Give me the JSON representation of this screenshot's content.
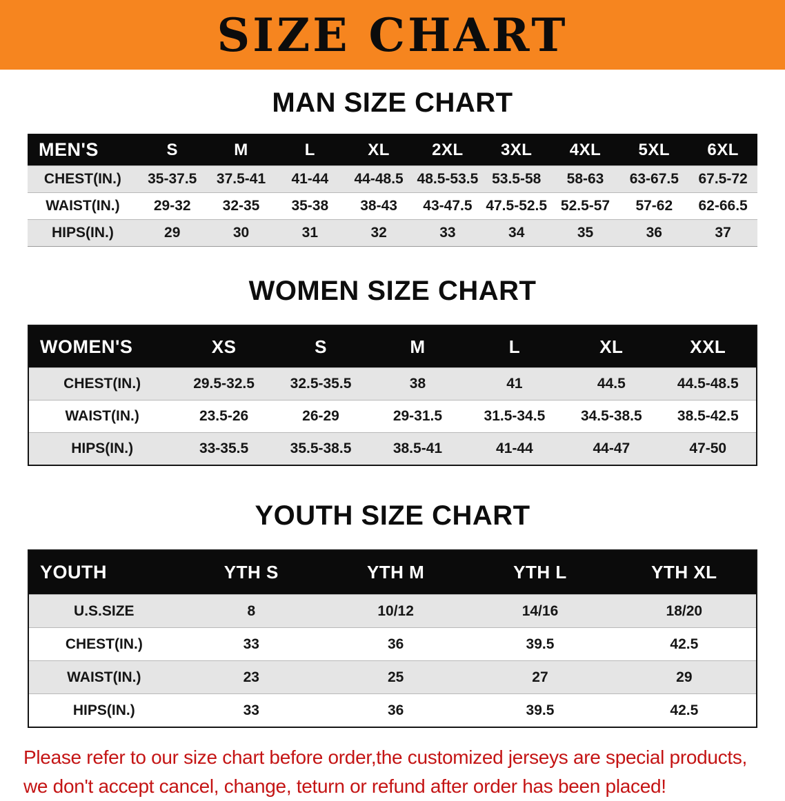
{
  "banner": {
    "title": "SIZE CHART",
    "background_color": "#F6851F",
    "text_color": "#0C0C0C"
  },
  "sections": {
    "men": {
      "title": "MAN SIZE CHART",
      "table": {
        "header": [
          "MEN'S",
          "S",
          "M",
          "L",
          "XL",
          "2XL",
          "3XL",
          "4XL",
          "5XL",
          "6XL"
        ],
        "rows": [
          [
            "CHEST(IN.)",
            "35-37.5",
            "37.5-41",
            "41-44",
            "44-48.5",
            "48.5-53.5",
            "53.5-58",
            "58-63",
            "63-67.5",
            "67.5-72"
          ],
          [
            "WAIST(IN.)",
            "29-32",
            "32-35",
            "35-38",
            "38-43",
            "43-47.5",
            "47.5-52.5",
            "52.5-57",
            "57-62",
            "62-66.5"
          ],
          [
            "HIPS(IN.)",
            "29",
            "30",
            "31",
            "32",
            "33",
            "34",
            "35",
            "36",
            "37"
          ]
        ]
      }
    },
    "women": {
      "title": "WOMEN SIZE CHART",
      "table": {
        "header": [
          "WOMEN'S",
          "XS",
          "S",
          "M",
          "L",
          "XL",
          "XXL"
        ],
        "rows": [
          [
            "CHEST(IN.)",
            "29.5-32.5",
            "32.5-35.5",
            "38",
            "41",
            "44.5",
            "44.5-48.5"
          ],
          [
            "WAIST(IN.)",
            "23.5-26",
            "26-29",
            "29-31.5",
            "31.5-34.5",
            "34.5-38.5",
            "38.5-42.5"
          ],
          [
            "HIPS(IN.)",
            "33-35.5",
            "35.5-38.5",
            "38.5-41",
            "41-44",
            "44-47",
            "47-50"
          ]
        ]
      }
    },
    "youth": {
      "title": "YOUTH SIZE CHART",
      "table": {
        "header": [
          "YOUTH",
          "YTH S",
          "YTH M",
          "YTH L",
          "YTH XL"
        ],
        "rows": [
          [
            "U.S.SIZE",
            "8",
            "10/12",
            "14/16",
            "18/20"
          ],
          [
            "CHEST(IN.)",
            "33",
            "36",
            "39.5",
            "42.5"
          ],
          [
            "WAIST(IN.)",
            "23",
            "25",
            "27",
            "29"
          ],
          [
            "HIPS(IN.)",
            "33",
            "36",
            "39.5",
            "42.5"
          ]
        ]
      }
    }
  },
  "disclaimer": {
    "line1": "Please refer to our size chart before order,the customized jerseys are special products,",
    "line2": "we don't accept cancel, change, teturn or refund after order has been placed!",
    "text_color": "#C41414"
  },
  "colors": {
    "table_header_bg": "#0B0B0B",
    "table_header_text": "#FFFFFF",
    "row_shade": "#E5E5E5",
    "row_plain": "#FFFFFF"
  }
}
